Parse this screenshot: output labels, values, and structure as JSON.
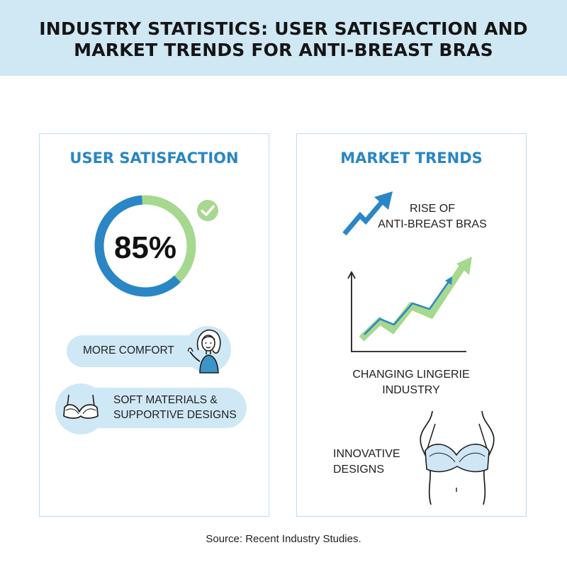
{
  "header": {
    "title_line1": "INDUSTRY STATISTICS: USER SATISFACTION AND",
    "title_line2": "MARKET TRENDS FOR ANTI-BREAST BRAS"
  },
  "satisfaction": {
    "title": "USER SATISFACTION",
    "percent_label": "85%",
    "percent_value": 85,
    "colors": {
      "ring_blue": "#2b86c5",
      "ring_green": "#a6d88f",
      "check": "#a6d88f"
    },
    "items": [
      {
        "label": "MORE COMFORT",
        "icon": "woman-icon"
      },
      {
        "label_line1": "SOFT MATERIALS &",
        "label_line2": "SUPPORTIVE DESIGNS",
        "icon": "bra-icon"
      }
    ]
  },
  "trends": {
    "title": "MARKET TRENDS",
    "rise_line1": "RISE OF",
    "rise_line2": "ANTI-BREAST BRAS",
    "changing_line1": "CHANGING LINGERIE",
    "changing_line2": "INDUSTRY",
    "innovative_line1": "INNOVATIVE",
    "innovative_line2": "DESIGNS"
  },
  "source": "Source: Recent Industry Studies."
}
